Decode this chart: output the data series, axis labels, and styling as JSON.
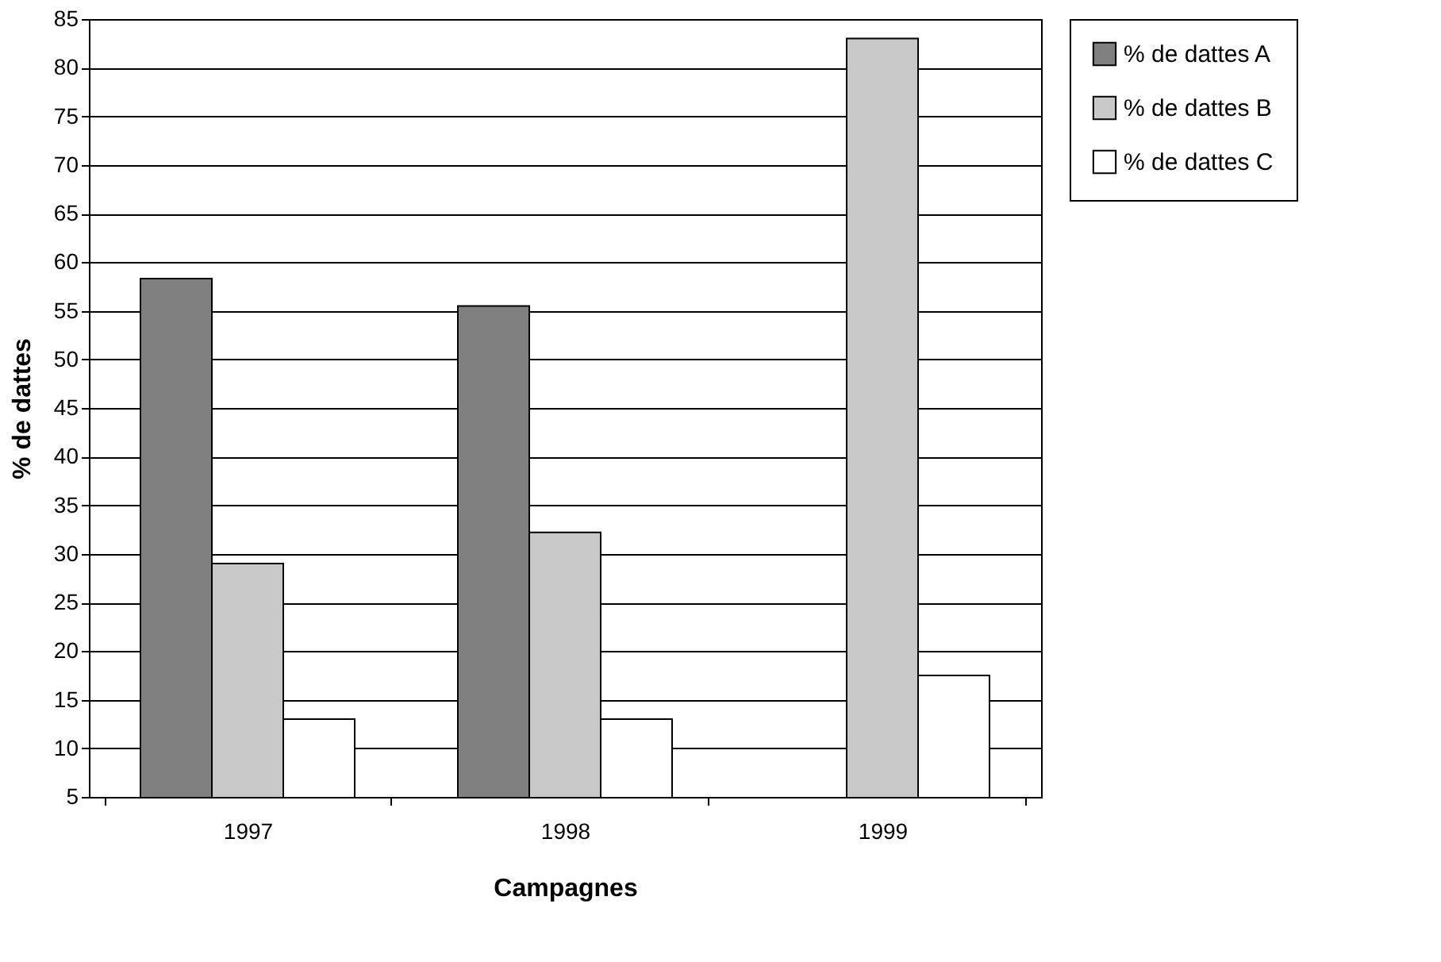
{
  "chart_data": {
    "type": "bar",
    "xlabel": "Campagnes",
    "ylabel": "% de dattes",
    "categories": [
      "1997",
      "1998",
      "1999"
    ],
    "series": [
      {
        "name": "% de dattes A",
        "color": "#808080",
        "values": [
          58.3,
          55.5,
          null
        ]
      },
      {
        "name": "% de dattes B",
        "color": "#c8c8c8",
        "values": [
          29,
          32.2,
          83
        ]
      },
      {
        "name": "% de dattes C",
        "color": "#ffffff",
        "values": [
          13,
          13,
          17.5
        ]
      }
    ],
    "ylim": [
      5,
      85
    ],
    "yticks": [
      5,
      10,
      15,
      20,
      25,
      30,
      35,
      40,
      45,
      50,
      55,
      60,
      65,
      70,
      75,
      80,
      85
    ],
    "grid": "y",
    "legend": "right"
  }
}
